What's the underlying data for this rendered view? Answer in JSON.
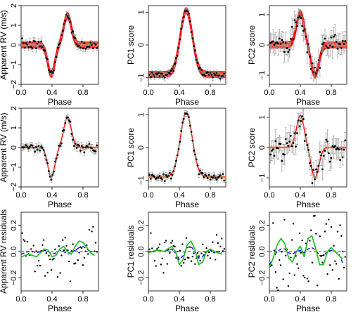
{
  "colors": {
    "points": "#000000",
    "error_bars": "#9a9a9a",
    "model_red": "#ff0000",
    "model_orange": "#ff8c00",
    "model_green": "#22bb22",
    "model_blue": "#0000ff",
    "zero_line": "#ff0000"
  },
  "chart_data": [
    {
      "id": "rv-top",
      "type": "scatter",
      "xlabel": "Phase",
      "ylabel": "Apparent RV (m/s)",
      "xlim": [
        0,
        1
      ],
      "ylim": [
        -2,
        2
      ],
      "xticks": [
        0.0,
        0.4,
        0.8
      ],
      "xticklabels": [
        "0.0",
        "0.4",
        "0.8"
      ],
      "yticks": [
        -2,
        -1,
        0,
        1,
        2
      ],
      "yticklabels": [
        "−2",
        "−1",
        "0",
        "1",
        "2"
      ],
      "curve": {
        "shape": "rv",
        "amp": 1.5
      },
      "noise": 0.12,
      "errbar": 0.15,
      "n_points": 60,
      "bands": "red",
      "style": "fit"
    },
    {
      "id": "pc1-top",
      "type": "scatter",
      "xlabel": "Phase",
      "ylabel": "PC1 score",
      "xlim": [
        0,
        1
      ],
      "ylim": [
        -1.2,
        1.2
      ],
      "xticks": [
        0.0,
        0.4,
        0.8
      ],
      "xticklabels": [
        "0.0",
        "0.4",
        "0.8"
      ],
      "yticks": [
        -1,
        0,
        1
      ],
      "yticklabels": [
        "−1",
        "0",
        "1"
      ],
      "curve": {
        "shape": "pc1",
        "amp": 1.0
      },
      "noise": 0.05,
      "errbar": 0.08,
      "n_points": 60,
      "bands": "red",
      "style": "fit"
    },
    {
      "id": "pc2-top",
      "type": "scatter",
      "xlabel": "Phase",
      "ylabel": "PC2 score",
      "xlim": [
        0,
        1
      ],
      "ylim": [
        -1.3,
        1.3
      ],
      "xticks": [
        0.0,
        0.4,
        0.8
      ],
      "xticklabels": [
        "0.0",
        "0.4",
        "0.8"
      ],
      "yticks": [
        -1,
        0,
        1
      ],
      "yticklabels": [
        "−1",
        "0",
        "1"
      ],
      "curve": {
        "shape": "pc2",
        "amp": 1.0
      },
      "noise": 0.2,
      "errbar": 0.3,
      "n_points": 60,
      "bands": "red",
      "style": "fit"
    },
    {
      "id": "rv-mid",
      "type": "scatter",
      "xlabel": "Phase",
      "ylabel": "Apparent RV (m/s)",
      "xlim": [
        0,
        1
      ],
      "ylim": [
        -2,
        2
      ],
      "xticks": [
        0.0,
        0.4,
        0.8
      ],
      "xticklabels": [
        "0.0",
        "0.4",
        "0.8"
      ],
      "yticks": [
        -2,
        -1,
        0,
        1,
        2
      ],
      "yticklabels": [
        "−2",
        "−1",
        "0",
        "1",
        "2"
      ],
      "curve": {
        "shape": "rv",
        "amp": 1.5
      },
      "noise": 0.12,
      "errbar": 0.15,
      "n_points": 60,
      "bands": "thin",
      "style": "fit"
    },
    {
      "id": "pc1-mid",
      "type": "scatter",
      "xlabel": "Phase",
      "ylabel": "PC1 score",
      "xlim": [
        0,
        1
      ],
      "ylim": [
        -1.2,
        1.2
      ],
      "xticks": [
        0.0,
        0.4,
        0.8
      ],
      "xticklabels": [
        "0.0",
        "0.4",
        "0.8"
      ],
      "yticks": [
        -1,
        0,
        1
      ],
      "yticklabels": [
        "−1",
        "0",
        "1"
      ],
      "curve": {
        "shape": "pc1",
        "amp": 1.0
      },
      "noise": 0.05,
      "errbar": 0.08,
      "n_points": 60,
      "bands": "thin",
      "style": "fit"
    },
    {
      "id": "pc2-mid",
      "type": "scatter",
      "xlabel": "Phase",
      "ylabel": "PC2 score",
      "xlim": [
        0,
        1
      ],
      "ylim": [
        -1.3,
        1.3
      ],
      "xticks": [
        0.0,
        0.4,
        0.8
      ],
      "xticklabels": [
        "0.0",
        "0.4",
        "0.8"
      ],
      "yticks": [
        -1,
        0,
        1
      ],
      "yticklabels": [
        "−1",
        "0",
        "1"
      ],
      "curve": {
        "shape": "pc2",
        "amp": 1.0
      },
      "noise": 0.2,
      "errbar": 0.3,
      "n_points": 60,
      "bands": "thin",
      "style": "fit"
    },
    {
      "id": "rv-res",
      "type": "scatter",
      "xlabel": "Phase",
      "ylabel": "Apparent RV residuals",
      "xlim": [
        0,
        1
      ],
      "ylim": [
        -0.3,
        0.3
      ],
      "xticks": [
        0.0,
        0.4,
        0.8
      ],
      "xticklabels": [
        "0.0",
        "0.4",
        "0.8"
      ],
      "yticks": [
        -0.2,
        0.0,
        0.2
      ],
      "yticklabels": [
        "−0.2",
        "0.0",
        "0.2"
      ],
      "noise": 0.09,
      "n_points": 60,
      "style": "residual",
      "green_line": [
        [
          0.0,
          -0.04
        ],
        [
          0.05,
          -0.03
        ],
        [
          0.1,
          -0.02
        ],
        [
          0.15,
          -0.03
        ],
        [
          0.2,
          -0.04
        ],
        [
          0.25,
          -0.01
        ],
        [
          0.3,
          0.02
        ],
        [
          0.35,
          0.01
        ],
        [
          0.4,
          -0.04
        ],
        [
          0.45,
          -0.03
        ],
        [
          0.5,
          0.02
        ],
        [
          0.55,
          0.04
        ],
        [
          0.6,
          0.0
        ],
        [
          0.65,
          -0.02
        ],
        [
          0.7,
          0.04
        ],
        [
          0.75,
          0.08
        ],
        [
          0.8,
          0.07
        ],
        [
          0.85,
          0.03
        ],
        [
          0.9,
          -0.01
        ],
        [
          0.95,
          -0.03
        ]
      ],
      "blue_line": [
        [
          0.0,
          -0.02
        ],
        [
          0.05,
          -0.01
        ],
        [
          0.1,
          0.0
        ],
        [
          0.15,
          0.0
        ],
        [
          0.2,
          -0.01
        ],
        [
          0.25,
          0.0
        ],
        [
          0.3,
          0.01
        ],
        [
          0.35,
          0.0
        ],
        [
          0.4,
          -0.02
        ],
        [
          0.45,
          -0.01
        ],
        [
          0.5,
          0.01
        ],
        [
          0.55,
          0.0
        ],
        [
          0.6,
          -0.02
        ],
        [
          0.65,
          -0.01
        ],
        [
          0.7,
          0.01
        ],
        [
          0.75,
          0.03
        ],
        [
          0.8,
          0.04
        ],
        [
          0.85,
          0.02
        ],
        [
          0.9,
          -0.01
        ],
        [
          0.95,
          -0.03
        ]
      ]
    },
    {
      "id": "pc1-res",
      "type": "scatter",
      "xlabel": "Phase",
      "ylabel": "PC1 residuals",
      "xlim": [
        0,
        1
      ],
      "ylim": [
        -0.3,
        0.3
      ],
      "xticks": [
        0.0,
        0.4,
        0.8
      ],
      "xticklabels": [
        "0.0",
        "0.4",
        "0.8"
      ],
      "yticks": [
        -0.2,
        0.0,
        0.2
      ],
      "yticklabels": [
        "−0.2",
        "0.0",
        "0.2"
      ],
      "noise": 0.07,
      "n_points": 60,
      "style": "residual",
      "green_line": [
        [
          0.0,
          -0.01
        ],
        [
          0.05,
          0.0
        ],
        [
          0.1,
          0.01
        ],
        [
          0.15,
          0.01
        ],
        [
          0.2,
          0.0
        ],
        [
          0.25,
          0.02
        ],
        [
          0.3,
          0.04
        ],
        [
          0.35,
          0.0
        ],
        [
          0.4,
          -0.1
        ],
        [
          0.45,
          -0.06
        ],
        [
          0.5,
          0.05
        ],
        [
          0.55,
          0.08
        ],
        [
          0.6,
          0.02
        ],
        [
          0.65,
          -0.1
        ],
        [
          0.7,
          -0.08
        ],
        [
          0.75,
          0.0
        ],
        [
          0.8,
          0.02
        ],
        [
          0.85,
          0.0
        ],
        [
          0.9,
          -0.01
        ],
        [
          0.95,
          -0.02
        ]
      ],
      "blue_line": [
        [
          0.0,
          0.0
        ],
        [
          0.05,
          0.0
        ],
        [
          0.1,
          0.01
        ],
        [
          0.15,
          0.01
        ],
        [
          0.2,
          0.0
        ],
        [
          0.25,
          0.01
        ],
        [
          0.3,
          0.02
        ],
        [
          0.35,
          -0.01
        ],
        [
          0.4,
          -0.06
        ],
        [
          0.45,
          -0.03
        ],
        [
          0.5,
          0.03
        ],
        [
          0.55,
          0.04
        ],
        [
          0.6,
          0.0
        ],
        [
          0.65,
          -0.05
        ],
        [
          0.7,
          -0.04
        ],
        [
          0.75,
          0.0
        ],
        [
          0.8,
          0.01
        ],
        [
          0.85,
          0.0
        ],
        [
          0.9,
          0.0
        ],
        [
          0.95,
          -0.01
        ]
      ]
    },
    {
      "id": "pc2-res",
      "type": "scatter",
      "xlabel": "Phase",
      "ylabel": "PC2 residuals",
      "xlim": [
        0,
        1
      ],
      "ylim": [
        -0.3,
        0.3
      ],
      "xticks": [
        0.0,
        0.4,
        0.8
      ],
      "xticklabels": [
        "0.0",
        "0.4",
        "0.8"
      ],
      "yticks": [
        -0.2,
        0.0,
        0.2
      ],
      "yticklabels": [
        "−0.2",
        "0.0",
        "0.2"
      ],
      "noise": 0.14,
      "n_points": 60,
      "style": "residual",
      "green_line": [
        [
          0.0,
          -0.12
        ],
        [
          0.05,
          -0.05
        ],
        [
          0.1,
          0.05
        ],
        [
          0.15,
          0.1
        ],
        [
          0.2,
          0.06
        ],
        [
          0.25,
          -0.05
        ],
        [
          0.3,
          -0.08
        ],
        [
          0.35,
          0.0
        ],
        [
          0.4,
          0.04
        ],
        [
          0.45,
          -0.04
        ],
        [
          0.5,
          0.1
        ],
        [
          0.55,
          0.12
        ],
        [
          0.6,
          0.02
        ],
        [
          0.65,
          -0.1
        ],
        [
          0.7,
          -0.1
        ],
        [
          0.75,
          0.0
        ],
        [
          0.8,
          0.03
        ],
        [
          0.85,
          0.0
        ],
        [
          0.9,
          -0.03
        ],
        [
          0.95,
          -0.06
        ]
      ],
      "blue_line": [
        [
          0.0,
          -0.1
        ],
        [
          0.05,
          -0.05
        ],
        [
          0.1,
          0.0
        ],
        [
          0.15,
          0.02
        ],
        [
          0.2,
          0.02
        ],
        [
          0.25,
          -0.01
        ],
        [
          0.3,
          -0.02
        ],
        [
          0.35,
          0.0
        ],
        [
          0.4,
          0.01
        ],
        [
          0.45,
          -0.01
        ],
        [
          0.5,
          0.02
        ],
        [
          0.55,
          0.03
        ],
        [
          0.6,
          0.01
        ],
        [
          0.65,
          -0.03
        ],
        [
          0.7,
          -0.03
        ],
        [
          0.75,
          0.0
        ],
        [
          0.8,
          0.01
        ],
        [
          0.85,
          0.0
        ],
        [
          0.9,
          -0.02
        ],
        [
          0.95,
          -0.09
        ]
      ]
    }
  ]
}
